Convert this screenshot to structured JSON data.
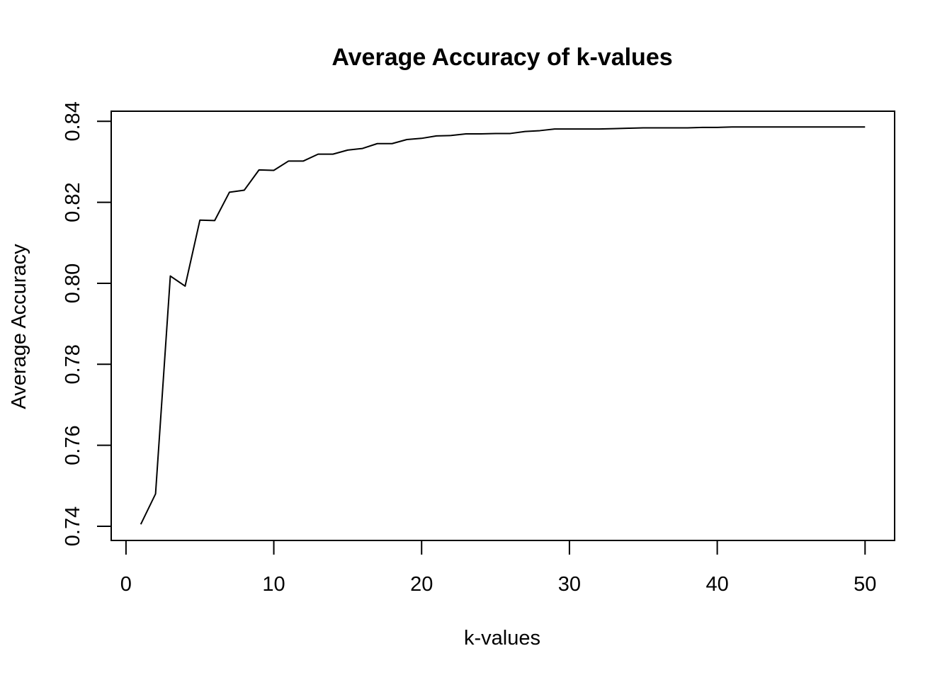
{
  "chart_data": {
    "type": "line",
    "title": "Average Accuracy of k-values",
    "xlabel": "k-values",
    "ylabel": "Average Accuracy",
    "xlim": [
      -1,
      52
    ],
    "ylim": [
      0.7365,
      0.8425
    ],
    "x_ticks": [
      0,
      10,
      20,
      30,
      40,
      50
    ],
    "x_tick_labels": [
      "0",
      "10",
      "20",
      "30",
      "40",
      "50"
    ],
    "y_ticks": [
      0.74,
      0.76,
      0.78,
      0.8,
      0.82,
      0.84
    ],
    "y_tick_labels": [
      "0.74",
      "0.76",
      "0.78",
      "0.80",
      "0.82",
      "0.84"
    ],
    "grid": false,
    "series": [
      {
        "x": [
          1,
          2,
          3,
          4,
          5,
          6,
          7,
          8,
          9,
          10,
          11,
          12,
          13,
          14,
          15,
          16,
          17,
          18,
          19,
          20,
          21,
          22,
          23,
          24,
          25,
          26,
          27,
          28,
          29,
          30,
          31,
          32,
          33,
          34,
          35,
          36,
          37,
          38,
          39,
          40,
          41,
          42,
          43,
          44,
          45,
          46,
          47,
          48,
          49,
          50
        ],
        "values": [
          0.7405,
          0.748,
          0.8018,
          0.7993,
          0.8156,
          0.8155,
          0.8225,
          0.823,
          0.828,
          0.8279,
          0.8302,
          0.8302,
          0.8319,
          0.8319,
          0.8329,
          0.8333,
          0.8345,
          0.8345,
          0.8355,
          0.8358,
          0.8364,
          0.8365,
          0.8369,
          0.8369,
          0.837,
          0.837,
          0.8375,
          0.8377,
          0.8381,
          0.8381,
          0.8381,
          0.8381,
          0.8382,
          0.8383,
          0.8384,
          0.8384,
          0.8384,
          0.8384,
          0.8385,
          0.8385,
          0.8386,
          0.8386,
          0.8386,
          0.8386,
          0.8386,
          0.8386,
          0.8386,
          0.8386,
          0.8386,
          0.8386
        ]
      }
    ]
  }
}
